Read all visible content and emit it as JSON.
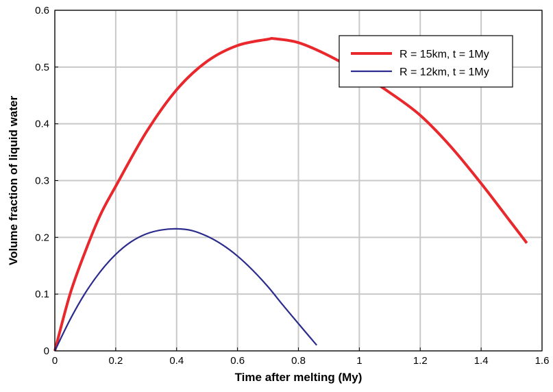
{
  "chart_data": {
    "type": "line",
    "xlabel": "Time after melting (My)",
    "ylabel": "Volume fraction of liquid water",
    "xlim": [
      0,
      1.6
    ],
    "ylim": [
      0,
      0.6
    ],
    "x_ticks": [
      "0",
      "0.2",
      "0.4",
      "0.6",
      "0.8",
      "1",
      "1.2",
      "1.4",
      "1.6"
    ],
    "y_ticks": [
      "0",
      "0.1",
      "0.2",
      "0.3",
      "0.4",
      "0.5",
      "0.6"
    ],
    "grid": true,
    "legend_position": "top-right",
    "series": [
      {
        "name": "R = 15km, t = 1My",
        "color": "#e8282c",
        "x": [
          0,
          0.05,
          0.1,
          0.15,
          0.2,
          0.3,
          0.4,
          0.5,
          0.6,
          0.7,
          0.72,
          0.8,
          0.9,
          1.0,
          1.1,
          1.2,
          1.3,
          1.4,
          1.5,
          1.55
        ],
        "y": [
          0,
          0.1,
          0.175,
          0.24,
          0.29,
          0.385,
          0.46,
          0.51,
          0.538,
          0.549,
          0.55,
          0.543,
          0.52,
          0.49,
          0.455,
          0.415,
          0.36,
          0.295,
          0.225,
          0.19
        ]
      },
      {
        "name": "R = 12km, t = 1My",
        "color": "#2b2b8c",
        "x": [
          0,
          0.05,
          0.1,
          0.15,
          0.2,
          0.25,
          0.3,
          0.35,
          0.4,
          0.45,
          0.5,
          0.55,
          0.6,
          0.65,
          0.7,
          0.75,
          0.8,
          0.86
        ],
        "y": [
          0,
          0.055,
          0.102,
          0.14,
          0.17,
          0.192,
          0.206,
          0.213,
          0.215,
          0.212,
          0.202,
          0.187,
          0.167,
          0.142,
          0.113,
          0.08,
          0.048,
          0.01
        ]
      }
    ]
  }
}
